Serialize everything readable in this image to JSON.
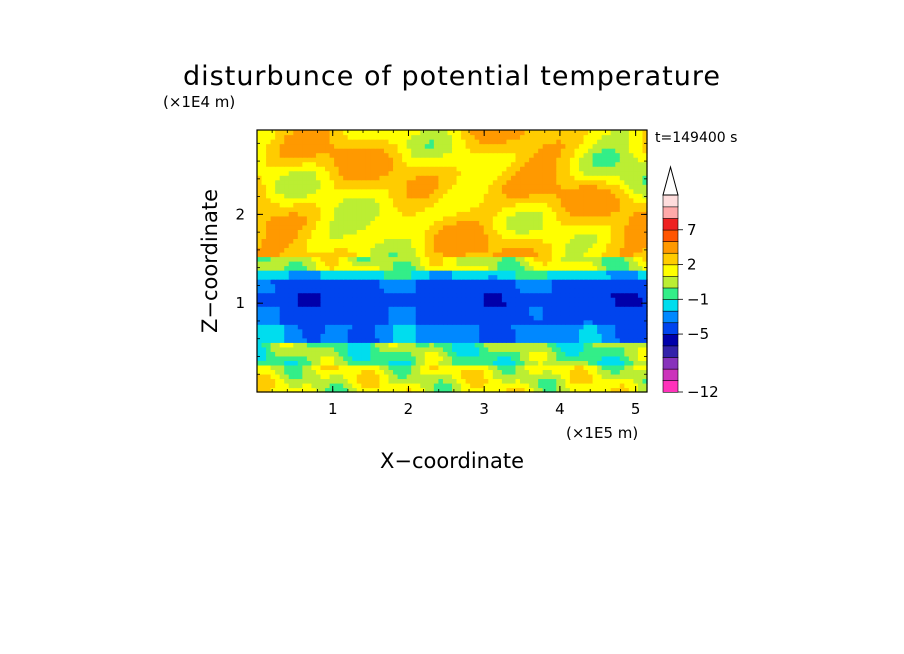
{
  "chart_data": {
    "type": "heatmap",
    "title": "disturbunce of potential temperature",
    "xlabel": "X−coordinate",
    "ylabel": "Z−coordinate",
    "x_unit": "(×1E5 m)",
    "y_unit": "(×1E4 m)",
    "time_label": "t=149400 s",
    "xlim": [
      0,
      5.15
    ],
    "ylim": [
      0,
      2.95
    ],
    "x_ticks": [
      1,
      2,
      3,
      4,
      5
    ],
    "y_ticks": [
      1,
      2
    ],
    "colorbar": {
      "tick_labels": [
        "7",
        "2",
        "−1",
        "−5",
        "−12"
      ],
      "levels": [
        -12,
        -11,
        -9,
        -7,
        -5,
        -3,
        -2,
        -1,
        0,
        1,
        2,
        3,
        5,
        7,
        9,
        11
      ],
      "colors": [
        "#ff33bb",
        "#cc33bb",
        "#8833bb",
        "#3322aa",
        "#0000aa",
        "#0044ee",
        "#0088ff",
        "#00ddee",
        "#33ee88",
        "#bbee33",
        "#ffff00",
        "#ffcc00",
        "#ff9900",
        "#ff5500",
        "#ee2222",
        "#ffaaaa",
        "#ffdddd"
      ],
      "extend": "max"
    },
    "grid": false
  }
}
